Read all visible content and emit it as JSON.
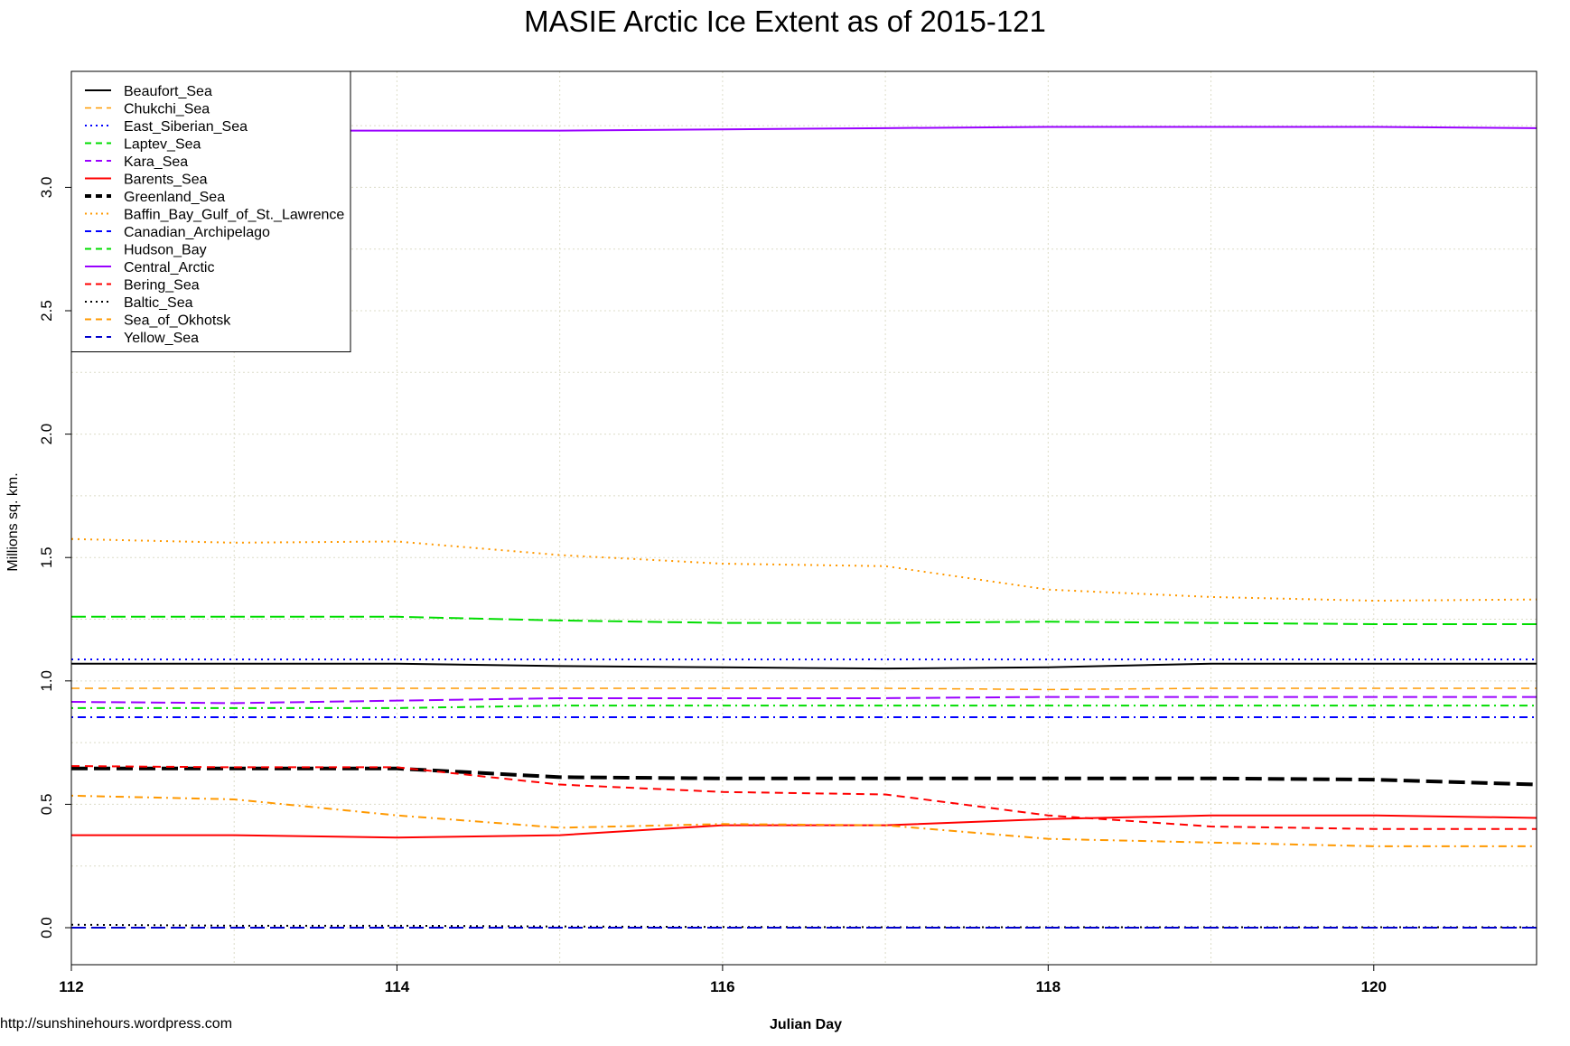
{
  "chart_data": {
    "type": "line",
    "title": "MASIE Arctic Ice Extent as of 2015-121",
    "xlabel": "Julian Day",
    "ylabel": "Millions sq. km.",
    "credit": "http://sunshinehours.wordpress.com",
    "xlim": [
      112,
      121
    ],
    "ylim": [
      -0.15,
      3.47
    ],
    "x_ticks": [
      "112",
      "114",
      "116",
      "118",
      "120"
    ],
    "y_ticks": [
      "0.0",
      "0.5",
      "1.0",
      "1.5",
      "2.0",
      "2.5",
      "3.0"
    ],
    "grid": true,
    "legend_position": "top-left",
    "x": [
      112,
      113,
      114,
      115,
      116,
      117,
      118,
      119,
      120,
      121
    ],
    "series": [
      {
        "name": "Beaufort_Sea",
        "color": "#000000",
        "dash": "solid",
        "width": 2,
        "values": [
          1.07,
          1.07,
          1.07,
          1.06,
          1.055,
          1.05,
          1.055,
          1.07,
          1.07,
          1.07
        ]
      },
      {
        "name": "Chukchi_Sea",
        "color": "#ff9900",
        "dash": "dashed",
        "width": 1.5,
        "values": [
          0.97,
          0.97,
          0.97,
          0.97,
          0.97,
          0.97,
          0.965,
          0.97,
          0.97,
          0.97
        ]
      },
      {
        "name": "East_Siberian_Sea",
        "color": "#0000ff",
        "dash": "dotted",
        "width": 2,
        "values": [
          1.087,
          1.087,
          1.087,
          1.087,
          1.087,
          1.087,
          1.087,
          1.087,
          1.087,
          1.087
        ]
      },
      {
        "name": "Laptev_Sea",
        "color": "#00dd00",
        "dash": "dotdash",
        "width": 2,
        "values": [
          0.89,
          0.89,
          0.89,
          0.9,
          0.9,
          0.9,
          0.9,
          0.9,
          0.9,
          0.9
        ]
      },
      {
        "name": "Kara_Sea",
        "color": "#9900ff",
        "dash": "longdash",
        "width": 2,
        "values": [
          0.915,
          0.91,
          0.92,
          0.93,
          0.93,
          0.93,
          0.935,
          0.935,
          0.935,
          0.935
        ]
      },
      {
        "name": "Barents_Sea",
        "color": "#ff0000",
        "dash": "solid",
        "width": 2,
        "values": [
          0.375,
          0.375,
          0.365,
          0.375,
          0.415,
          0.415,
          0.44,
          0.455,
          0.455,
          0.445
        ]
      },
      {
        "name": "Greenland_Sea",
        "color": "#000000",
        "dash": "boldlong",
        "width": 4,
        "values": [
          0.645,
          0.645,
          0.645,
          0.61,
          0.605,
          0.605,
          0.605,
          0.605,
          0.6,
          0.58
        ]
      },
      {
        "name": "Baffin_Bay_Gulf_of_St._Lawrence",
        "color": "#ff9900",
        "dash": "dotted",
        "width": 2,
        "values": [
          1.575,
          1.56,
          1.565,
          1.51,
          1.475,
          1.465,
          1.37,
          1.34,
          1.325,
          1.33
        ]
      },
      {
        "name": "Canadian_Archipelago",
        "color": "#0000ff",
        "dash": "dotdash",
        "width": 2,
        "values": [
          0.853,
          0.853,
          0.853,
          0.853,
          0.853,
          0.853,
          0.853,
          0.853,
          0.853,
          0.853
        ]
      },
      {
        "name": "Hudson_Bay",
        "color": "#00dd00",
        "dash": "longdash",
        "width": 2,
        "values": [
          1.26,
          1.26,
          1.26,
          1.245,
          1.235,
          1.235,
          1.24,
          1.235,
          1.23,
          1.23
        ]
      },
      {
        "name": "Central_Arctic",
        "color": "#9900ff",
        "dash": "solid",
        "width": 2,
        "values": [
          3.23,
          3.23,
          3.23,
          3.23,
          3.235,
          3.24,
          3.245,
          3.245,
          3.245,
          3.24
        ]
      },
      {
        "name": "Bering_Sea",
        "color": "#ff0000",
        "dash": "dashed",
        "width": 2,
        "values": [
          0.655,
          0.65,
          0.65,
          0.58,
          0.55,
          0.54,
          0.455,
          0.41,
          0.4,
          0.4
        ]
      },
      {
        "name": "Baltic_Sea",
        "color": "#000000",
        "dash": "dotted",
        "width": 2,
        "values": [
          0.012,
          0.008,
          0.008,
          0.005,
          0.003,
          0.002,
          0.002,
          0.002,
          0.002,
          0.002
        ]
      },
      {
        "name": "Sea_of_Okhotsk",
        "color": "#ff9900",
        "dash": "dotdash",
        "width": 2,
        "values": [
          0.535,
          0.52,
          0.455,
          0.405,
          0.42,
          0.415,
          0.36,
          0.345,
          0.33,
          0.33
        ]
      },
      {
        "name": "Yellow_Sea",
        "color": "#0000cc",
        "dash": "longdash",
        "width": 2,
        "values": [
          0.0,
          0.0,
          0.0,
          0.0,
          0.0,
          0.0,
          0.0,
          0.0,
          0.0,
          0.0
        ]
      }
    ]
  }
}
